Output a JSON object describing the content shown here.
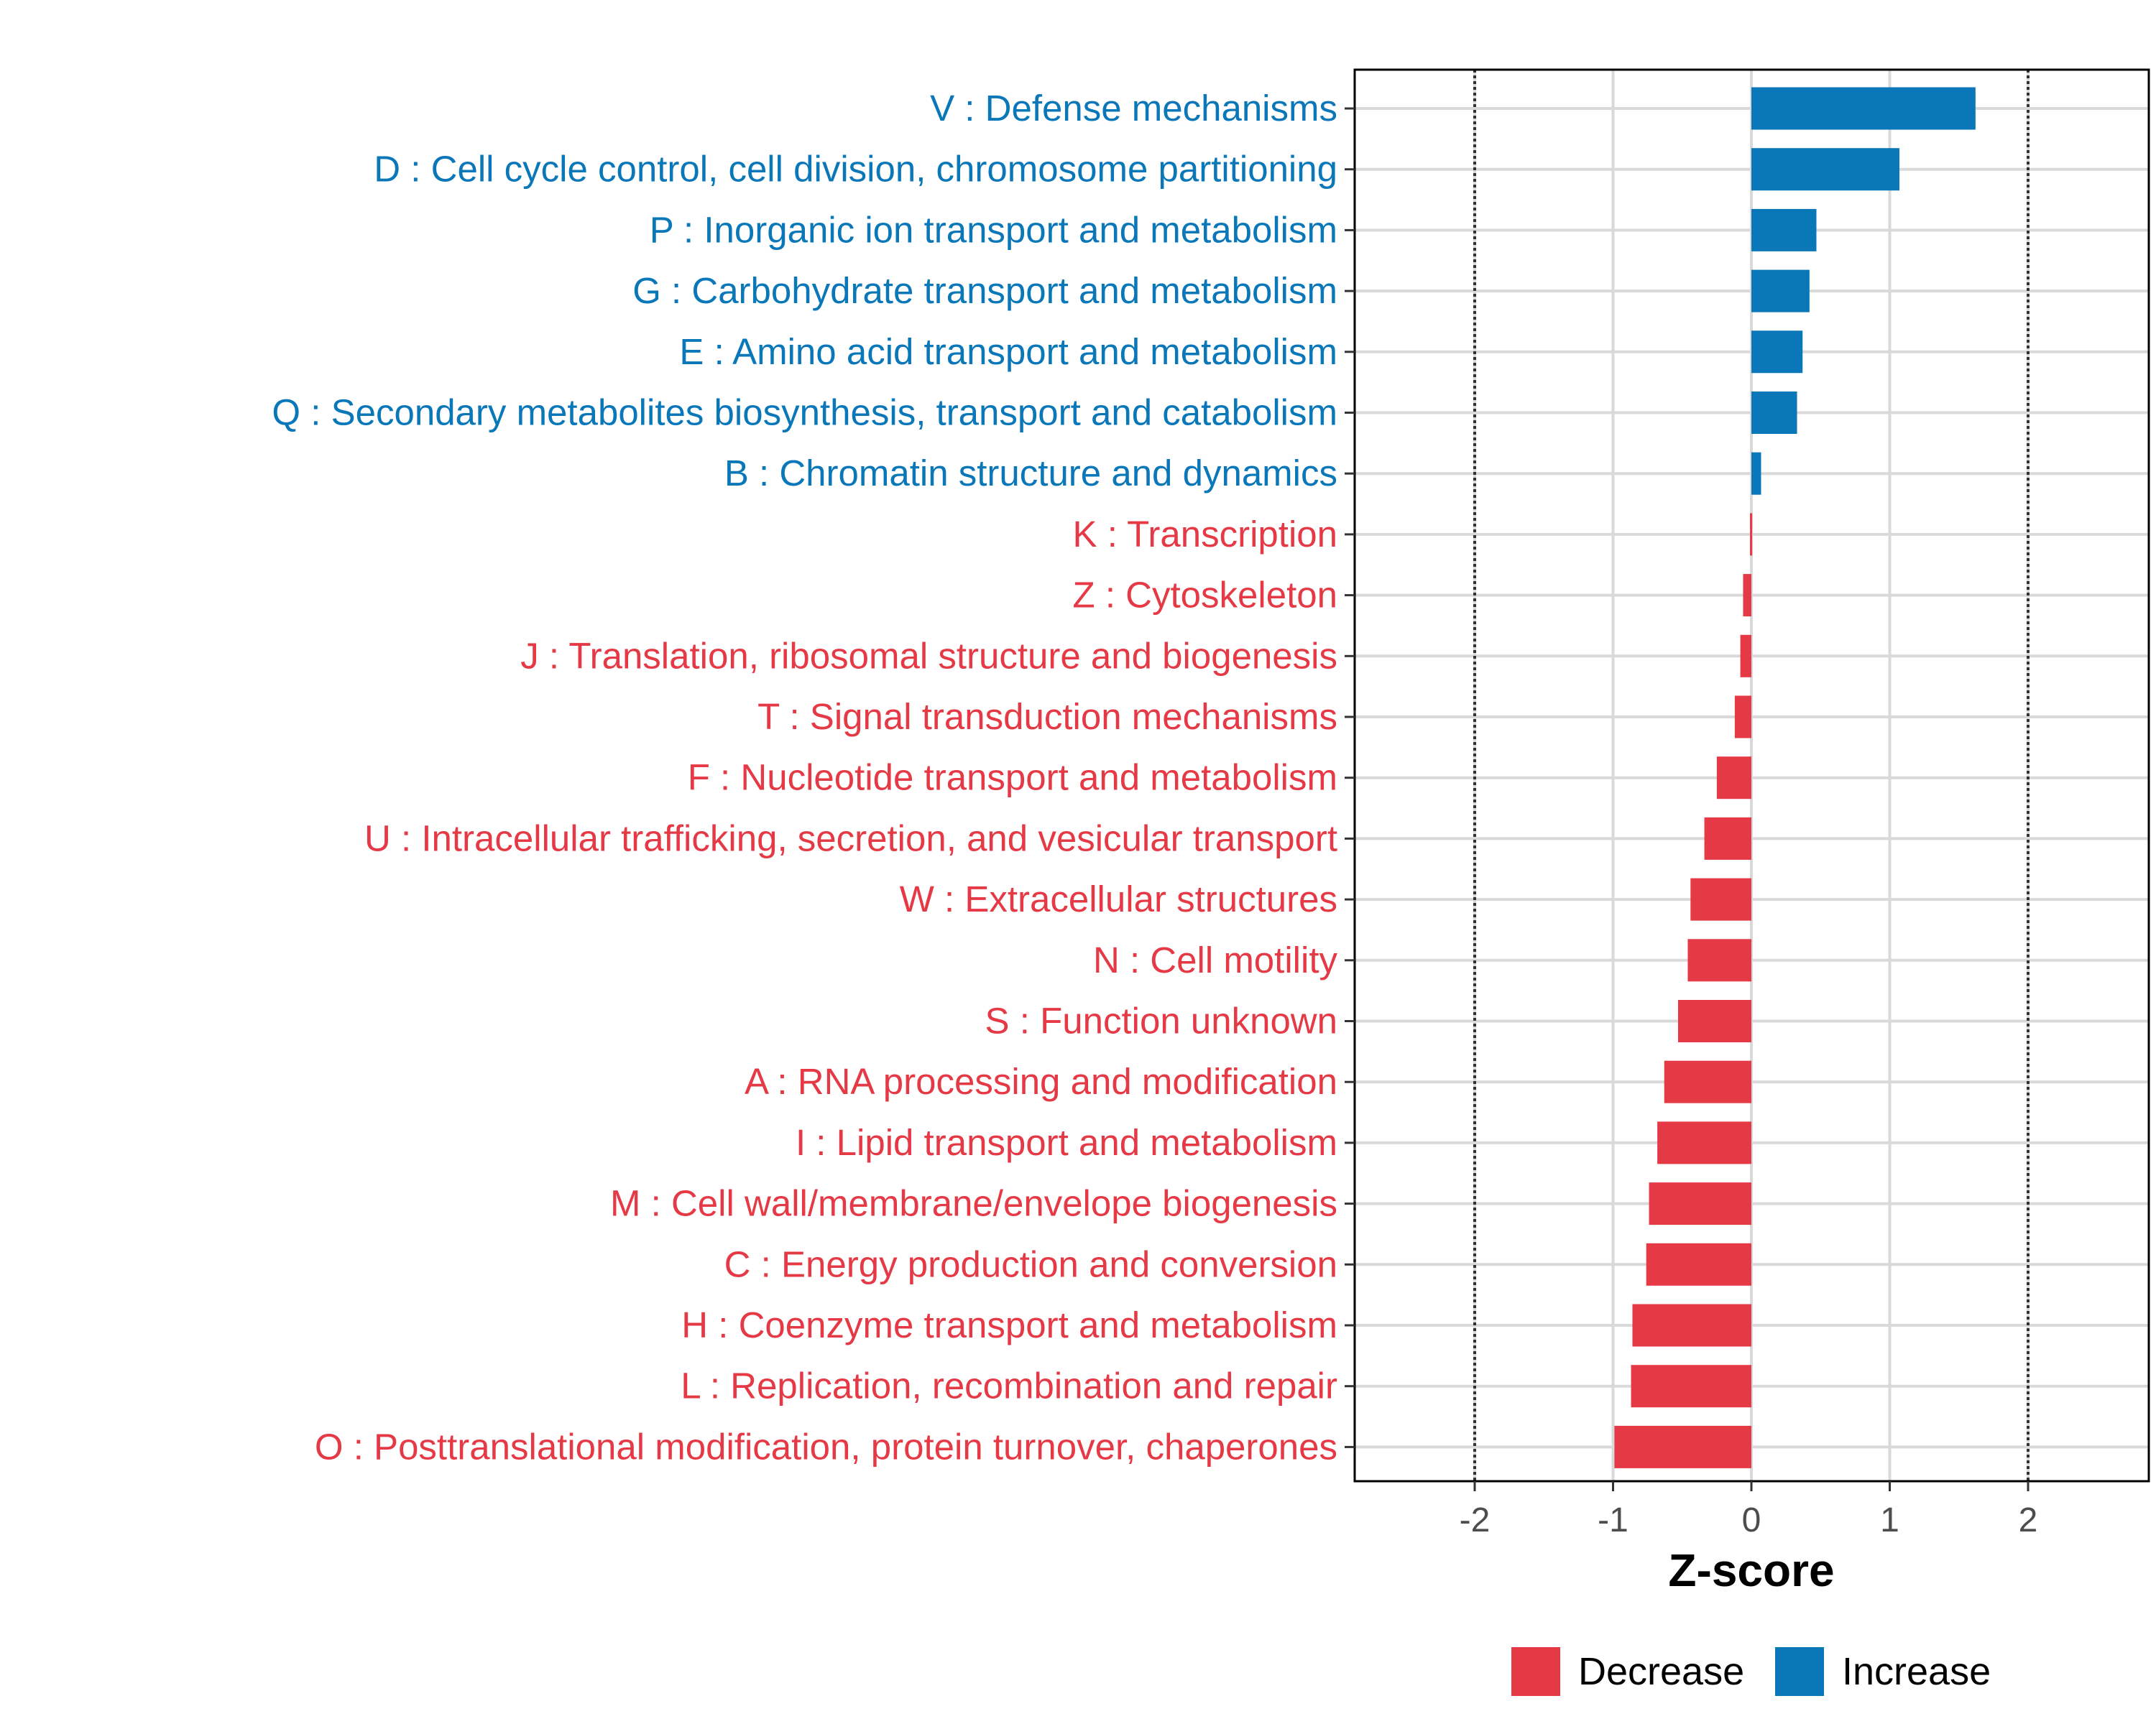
{
  "chart_data": {
    "type": "bar",
    "orientation": "horizontal",
    "xlabel": "Z-score",
    "ylabel": "",
    "xlim": [
      -2.87,
      2.87
    ],
    "x_ticks": [
      -2,
      -1,
      0,
      1,
      2
    ],
    "x_tick_labels": [
      "-2",
      "-1",
      "0",
      "1",
      "2"
    ],
    "reference_lines": [
      -2,
      2
    ],
    "grid": true,
    "colors": {
      "Increase": "#0a77b9",
      "Decrease": "#e63946",
      "frame": "#000000",
      "grid": "#d9d9d9",
      "tick_text": "#4d4d4d"
    },
    "categories": [
      "V : Defense mechanisms",
      "D : Cell cycle control, cell division, chromosome partitioning",
      "P : Inorganic ion transport and metabolism",
      "G : Carbohydrate transport and metabolism",
      "E : Amino acid transport and metabolism",
      "Q : Secondary metabolites biosynthesis, transport and catabolism",
      "B : Chromatin structure and dynamics",
      "K : Transcription",
      "Z : Cytoskeleton",
      "J : Translation, ribosomal structure and biogenesis",
      "T : Signal transduction mechanisms",
      "F : Nucleotide transport and metabolism",
      "U : Intracellular trafficking, secretion, and vesicular transport",
      "W : Extracellular structures",
      "N : Cell motility",
      "S : Function unknown",
      "A : RNA processing and modification",
      "I : Lipid transport and metabolism",
      "M : Cell wall/membrane/envelope biogenesis",
      "C : Energy production and conversion",
      "H : Coenzyme transport and metabolism",
      "L : Replication, recombination and repair",
      "O : Posttranslational modification, protein turnover, chaperones"
    ],
    "values": [
      1.62,
      1.07,
      0.47,
      0.42,
      0.37,
      0.33,
      0.07,
      -0.01,
      -0.06,
      -0.08,
      -0.12,
      -0.25,
      -0.34,
      -0.44,
      -0.46,
      -0.53,
      -0.63,
      -0.68,
      -0.74,
      -0.76,
      -0.86,
      -0.87,
      -0.99
    ],
    "groups": [
      "Increase",
      "Increase",
      "Increase",
      "Increase",
      "Increase",
      "Increase",
      "Increase",
      "Decrease",
      "Decrease",
      "Decrease",
      "Decrease",
      "Decrease",
      "Decrease",
      "Decrease",
      "Decrease",
      "Decrease",
      "Decrease",
      "Decrease",
      "Decrease",
      "Decrease",
      "Decrease",
      "Decrease",
      "Decrease"
    ],
    "legend": {
      "placement": "bottom",
      "entries": [
        "Decrease",
        "Increase"
      ]
    }
  }
}
